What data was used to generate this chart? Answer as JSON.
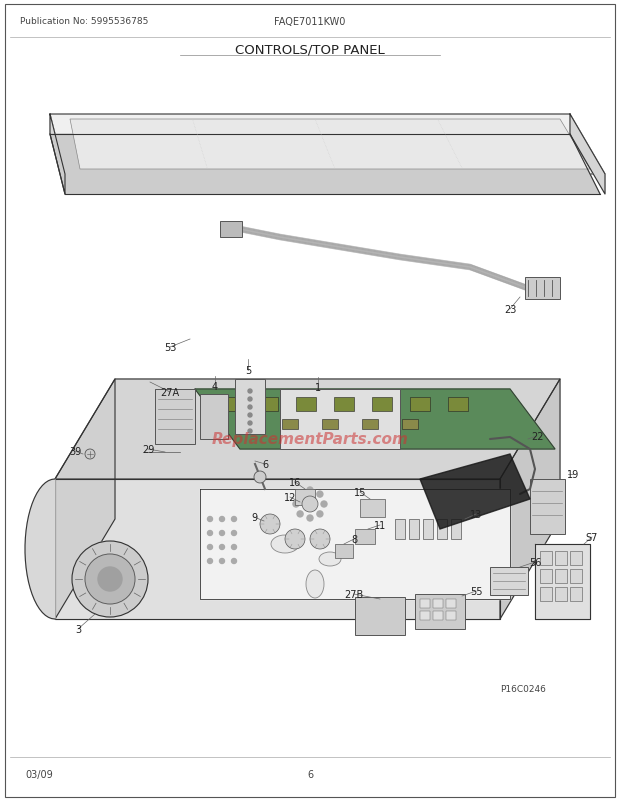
{
  "pub_no": "Publication No: 5995536785",
  "model": "FAQE7011KW0",
  "title": "CONTROLS/TOP PANEL",
  "footer_left": "03/09",
  "footer_center": "6",
  "watermark": "ReplacementParts.com",
  "page_code": "P16C0246",
  "bg_color": "#ffffff",
  "line_color": "#333333",
  "light_line": "#999999",
  "label_fontsize": 7.0,
  "header_fontsize": 7.5,
  "title_fontsize": 9.0
}
